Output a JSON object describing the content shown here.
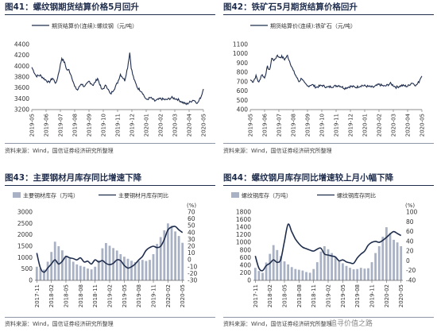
{
  "source_note": "资料来源：Wind，国信证券经济研究所整理",
  "watermark": "追寻价值之路",
  "panels": {
    "p41": {
      "num": "图41：",
      "title": "螺纹钢期货结算价格5月回升"
    },
    "p42": {
      "num": "图42：",
      "title": "铁矿石5月期货结算价格回升"
    },
    "p43": {
      "num": "图43：",
      "title": "主要钢材月库存同比增速下降"
    },
    "p44": {
      "num": "图44：",
      "title": "螺纹钢月库存同比增速较上月小幅下降"
    }
  },
  "chart_data": [
    {
      "id": "fig41",
      "type": "line",
      "series": [
        {
          "name": "期货结算价(连续):螺纹钢（元/吨）",
          "color": "#1f2d4d"
        }
      ],
      "x_ticks": [
        "2019-05",
        "2019-06",
        "2019-07",
        "2019-08",
        "2019-09",
        "2019-10",
        "2019-11",
        "2019-12",
        "2020-01",
        "2020-02",
        "2020-03",
        "2020-04",
        "2020-05"
      ],
      "y_ticks": [
        3200,
        3400,
        3600,
        3800,
        4000,
        4200,
        4400
      ],
      "ylim": [
        3200,
        4400
      ],
      "keypoints_x": [
        0,
        0.15,
        0.3,
        0.6,
        0.9,
        1.2,
        1.45,
        1.7,
        1.9,
        2.1,
        2.3,
        2.45,
        2.6,
        2.8,
        3.0,
        3.2,
        3.45,
        3.7,
        4.0,
        4.3,
        4.6,
        4.9,
        5.2,
        5.5,
        5.8,
        6.0,
        6.2,
        6.5,
        6.7,
        6.85,
        6.95,
        7.05,
        7.2,
        7.4,
        7.7,
        8.0,
        8.3,
        8.6,
        9.0,
        9.4,
        9.8,
        10.2,
        10.5,
        10.8,
        11.0,
        11.3,
        11.6,
        11.85,
        12.0
      ],
      "keypoints_y": [
        3980,
        3900,
        3820,
        3830,
        3760,
        3700,
        3780,
        3680,
        3900,
        4150,
        4060,
        3930,
        3930,
        3800,
        3620,
        3560,
        3680,
        3620,
        3720,
        3650,
        3780,
        3560,
        3650,
        3480,
        3600,
        3700,
        3850,
        3740,
        3980,
        4250,
        3980,
        3850,
        3720,
        3600,
        3530,
        3380,
        3420,
        3360,
        3400,
        3380,
        3420,
        3390,
        3340,
        3300,
        3330,
        3380,
        3320,
        3450,
        3580
      ]
    },
    {
      "id": "fig42",
      "type": "line",
      "series": [
        {
          "name": "期货结算价(连续):铁矿石（元/吨）",
          "color": "#1f2d4d"
        }
      ],
      "x_ticks": [
        "2019-05",
        "2019-06",
        "2019-07",
        "2019-08",
        "2019-09",
        "2019-10",
        "2019-11",
        "2019-12",
        "2020-01",
        "2020-02",
        "2020-03",
        "2020-04",
        "2020-05"
      ],
      "y_ticks": [
        400,
        500,
        600,
        700,
        800,
        900,
        1000,
        1100
      ],
      "ylim": [
        400,
        1100
      ],
      "keypoints_x": [
        0,
        0.2,
        0.4,
        0.6,
        0.8,
        1.0,
        1.2,
        1.35,
        1.5,
        1.7,
        1.9,
        2.0,
        2.2,
        2.4,
        2.6,
        2.8,
        3.0,
        3.2,
        3.4,
        3.6,
        3.8,
        4.0,
        4.3,
        4.6,
        5.0,
        5.4,
        5.8,
        6.2,
        6.6,
        7.0,
        7.4,
        7.8,
        8.2,
        8.6,
        9.0,
        9.4,
        9.8,
        10.2,
        10.6,
        11.0,
        11.3,
        11.6,
        11.8,
        11.9,
        12.0
      ],
      "keypoints_y": [
        720,
        700,
        760,
        690,
        780,
        740,
        860,
        820,
        950,
        930,
        990,
        960,
        970,
        940,
        980,
        900,
        820,
        760,
        700,
        740,
        680,
        650,
        670,
        640,
        660,
        640,
        650,
        660,
        630,
        650,
        640,
        660,
        650,
        640,
        670,
        650,
        680,
        640,
        660,
        650,
        690,
        660,
        700,
        740,
        760
      ]
    },
    {
      "id": "fig43",
      "type": "bar+line",
      "categories_ticks": [
        "2017-11",
        "2018-02",
        "2018-05",
        "2018-08",
        "2018-11",
        "2019-02",
        "2019-05",
        "2019-08",
        "2019-11",
        "2020-02",
        "2020-05"
      ],
      "series": [
        {
          "name": "主要钢材库存（万吨）",
          "type": "bar",
          "axis": "left",
          "color": "#a9b1c4",
          "values": [
            600,
            520,
            470,
            820,
            1250,
            1700,
            1500,
            1320,
            1090,
            960,
            820,
            700,
            640,
            600,
            520,
            480,
            600,
            880,
            1410,
            1640,
            1520,
            1420,
            1310,
            1150,
            1040,
            950,
            860,
            800,
            850,
            900,
            850,
            900,
            1150,
            1600,
            1900,
            2200,
            2500,
            2400,
            2150,
            1950,
            1650
          ]
        },
        {
          "name": "主要钢材月库存同比",
          "type": "line",
          "axis": "right",
          "color": "#1f2d4d",
          "values": [
            10,
            -12,
            -18,
            -12,
            -6,
            0,
            -6,
            -2,
            5,
            3,
            2,
            0,
            3,
            -3,
            -2,
            -6,
            0,
            -3,
            -1,
            -5,
            -7,
            -5,
            0,
            -1,
            -8,
            -12,
            -10,
            -6,
            0,
            5,
            14,
            18,
            20,
            18,
            20,
            30,
            44,
            48,
            49,
            44,
            40
          ]
        }
      ],
      "ylim_left": [
        0,
        3000
      ],
      "yticks_left": [
        0,
        500,
        1000,
        1500,
        2000,
        2500,
        3000
      ],
      "ylim_right": [
        -30,
        70
      ],
      "yticks_right": [
        -30,
        -20,
        -10,
        0,
        10,
        20,
        30,
        40,
        50,
        60,
        70
      ],
      "unit_right": "(%)"
    },
    {
      "id": "fig44",
      "type": "bar+line",
      "categories_ticks": [
        "2017-11",
        "2018-02",
        "2018-05",
        "2018-08",
        "2018-11",
        "2019-02",
        "2019-05",
        "2019-08",
        "2019-11",
        "2020-02",
        "2020-05"
      ],
      "series": [
        {
          "name": "螺纹钢库存（万吨）",
          "type": "bar",
          "axis": "left",
          "color": "#a9b1c4",
          "values": [
            330,
            250,
            200,
            470,
            700,
            930,
            800,
            640,
            500,
            420,
            350,
            300,
            280,
            260,
            220,
            200,
            300,
            480,
            760,
            900,
            820,
            720,
            620,
            520,
            450,
            380,
            330,
            290,
            300,
            330,
            310,
            320,
            480,
            720,
            900,
            1150,
            1400,
            1250,
            1070,
            1000,
            900
          ]
        },
        {
          "name": "螺纹钢库存同比",
          "type": "line",
          "axis": "right",
          "color": "#1f2d4d",
          "values": [
            10,
            -15,
            -20,
            -10,
            -5,
            2,
            -3,
            3,
            40,
            75,
            60,
            45,
            35,
            28,
            25,
            22,
            20,
            24,
            26,
            14,
            12,
            10,
            8,
            0,
            2,
            -2,
            -4,
            -5,
            6,
            14,
            20,
            32,
            38,
            40,
            38,
            42,
            48,
            55,
            60,
            56,
            52
          ]
        }
      ],
      "ylim_left": [
        0,
        1800
      ],
      "yticks_left": [
        0,
        200,
        400,
        600,
        800,
        1000,
        1200,
        1400,
        1600,
        1800
      ],
      "ylim_right": [
        -40,
        100
      ],
      "yticks_right": [
        -40,
        -20,
        0,
        20,
        40,
        60,
        80,
        100
      ],
      "unit_right": "(%)"
    }
  ]
}
